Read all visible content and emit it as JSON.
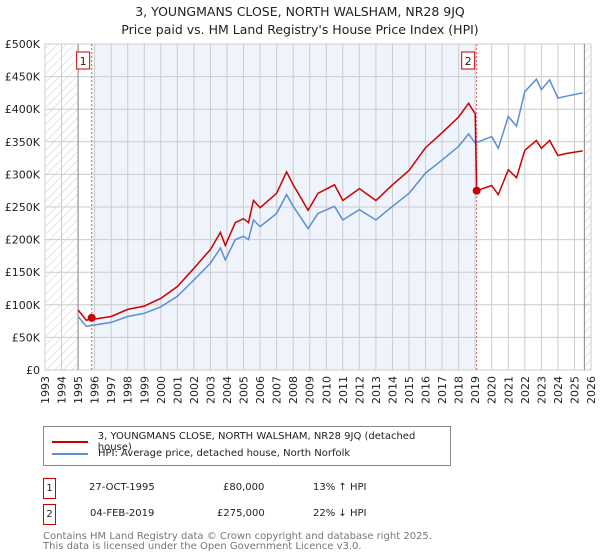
{
  "title": "3, YOUNGMANS CLOSE, NORTH WALSHAM, NR28 9JQ",
  "subtitle": "Price paid vs. HM Land Registry's House Price Index (HPI)",
  "colors": {
    "property": "#cc0000",
    "hpi": "#5b8fd0",
    "shade": "#eef3fc"
  },
  "chart_data": {
    "type": "line",
    "title": "3, YOUNGMANS CLOSE, NORTH WALSHAM, NR28 9JQ",
    "xlim": [
      1993,
      2026
    ],
    "ylim": [
      0,
      500000
    ],
    "x_ticks": [
      "1993",
      "1994",
      "1995",
      "1996",
      "1997",
      "1998",
      "1999",
      "2000",
      "2001",
      "2002",
      "2003",
      "2004",
      "2005",
      "2006",
      "2007",
      "2008",
      "2009",
      "2010",
      "2011",
      "2012",
      "2013",
      "2014",
      "2015",
      "2016",
      "2017",
      "2018",
      "2019",
      "2020",
      "2021",
      "2022",
      "2023",
      "2024",
      "2025",
      "2026"
    ],
    "y_ticks": [
      {
        "v": 0,
        "label": "£0"
      },
      {
        "v": 50000,
        "label": "£50K"
      },
      {
        "v": 100000,
        "label": "£100K"
      },
      {
        "v": 150000,
        "label": "£150K"
      },
      {
        "v": 200000,
        "label": "£200K"
      },
      {
        "v": 250000,
        "label": "£250K"
      },
      {
        "v": 300000,
        "label": "£300K"
      },
      {
        "v": 350000,
        "label": "£350K"
      },
      {
        "v": 400000,
        "label": "£400K"
      },
      {
        "v": 450000,
        "label": "£450K"
      },
      {
        "v": 500000,
        "label": "£500K"
      }
    ],
    "grid": true,
    "series": [
      {
        "name": "3, YOUNGMANS CLOSE, NORTH WALSHAM, NR28 9JQ (detached house)",
        "color": "#cc0000",
        "x": [
          1995.0,
          1995.5,
          1995.82,
          1996,
          1997,
          1998,
          1999,
          2000,
          2001,
          2002,
          2003,
          2003.6,
          2003.9,
          2004.5,
          2005,
          2005.3,
          2005.6,
          2006,
          2007,
          2007.6,
          2008,
          2008.9,
          2009.5,
          2010.5,
          2011,
          2012,
          2013,
          2014,
          2015,
          2016,
          2017,
          2018,
          2018.6,
          2019.0,
          2019.09,
          2020,
          2020.4,
          2021,
          2021.5,
          2022,
          2022.7,
          2023,
          2023.5,
          2024,
          2024.5,
          2025.5
        ],
        "y": [
          92000,
          76000,
          80000,
          78000,
          82000,
          93000,
          98000,
          110000,
          128000,
          156000,
          185000,
          211000,
          191000,
          226000,
          232000,
          226000,
          260000,
          249000,
          271000,
          304000,
          284000,
          245000,
          271000,
          284000,
          260000,
          278000,
          260000,
          284000,
          306000,
          341000,
          364000,
          388000,
          409000,
          393000,
          275000,
          283000,
          269000,
          307000,
          295000,
          337000,
          352000,
          340000,
          352000,
          329000,
          332000,
          336000
        ]
      },
      {
        "name": "HPI: Average price, detached house, North Norfolk",
        "color": "#5b8fd0",
        "x": [
          1995.0,
          1995.5,
          1996,
          1997,
          1998,
          1999,
          2000,
          2001,
          2002,
          2003,
          2003.6,
          2003.9,
          2004.5,
          2005,
          2005.3,
          2005.6,
          2006,
          2007,
          2007.6,
          2008,
          2008.9,
          2009.5,
          2010.5,
          2011,
          2012,
          2013,
          2014,
          2015,
          2016,
          2017,
          2018,
          2018.6,
          2019,
          2020,
          2020.4,
          2021,
          2021.5,
          2022,
          2022.7,
          2023,
          2023.5,
          2024,
          2024.5,
          2025.5
        ],
        "y": [
          82000,
          67000,
          69000,
          73000,
          82000,
          87000,
          97000,
          113000,
          138000,
          164000,
          187000,
          169000,
          200000,
          205000,
          200000,
          230000,
          220000,
          240000,
          269000,
          251000,
          217000,
          240000,
          251000,
          230000,
          246000,
          230000,
          251000,
          271000,
          302000,
          322000,
          343000,
          362000,
          348000,
          358000,
          340000,
          389000,
          374000,
          427000,
          446000,
          430000,
          445000,
          417000,
          420000,
          425000
        ]
      }
    ],
    "annotations": [
      {
        "label": "1",
        "x": 1995.82,
        "y": 80000
      },
      {
        "label": "2",
        "x": 2019.09,
        "y": 275000
      }
    ]
  },
  "legend": {
    "property": "3, YOUNGMANS CLOSE, NORTH WALSHAM, NR28 9JQ (detached house)",
    "hpi": "HPI: Average price, detached house, North Norfolk"
  },
  "sales": [
    {
      "num": "1",
      "date": "27-OCT-1995",
      "price": "£80,000",
      "hpi": "13% ↑ HPI"
    },
    {
      "num": "2",
      "date": "04-FEB-2019",
      "price": "£275,000",
      "hpi": "22% ↓ HPI"
    }
  ],
  "footer": [
    "Contains HM Land Registry data © Crown copyright and database right 2025.",
    "This data is licensed under the Open Government Licence v3.0."
  ]
}
